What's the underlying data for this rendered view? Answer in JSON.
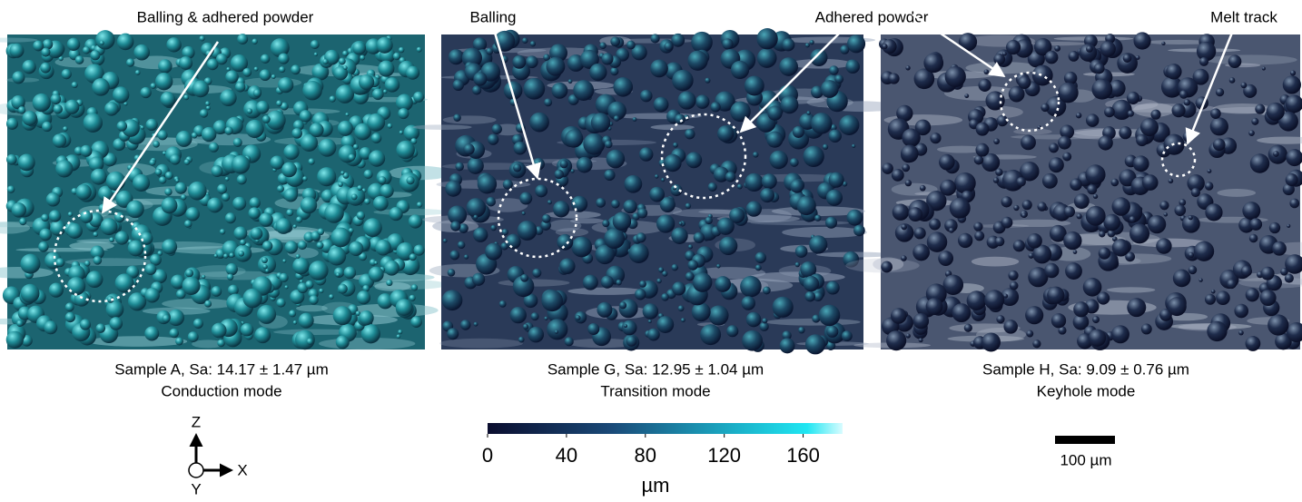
{
  "panels": [
    {
      "annotations": [
        "Balling & adhered powder"
      ],
      "caption": "Sample A, Sa: 14.17 ± 1.47 µm",
      "mode": "Conduction mode"
    },
    {
      "annotations": [
        "Balling",
        "Adhered powder"
      ],
      "caption": "Sample G, Sa: 12.95 ± 1.04 µm",
      "mode": "Transition mode"
    },
    {
      "annotations": [
        "Melt track"
      ],
      "caption": "Sample H, Sa: 9.09 ± 0.76 µm",
      "mode": "Keyhole mode"
    }
  ],
  "colorbar": {
    "range": [
      0,
      180
    ],
    "ticks": [
      0,
      40,
      80,
      120,
      160
    ],
    "unit": "µm"
  },
  "axes": {
    "z": "Z",
    "x": "X",
    "y": "Y"
  },
  "scale_bar": "100 µm"
}
